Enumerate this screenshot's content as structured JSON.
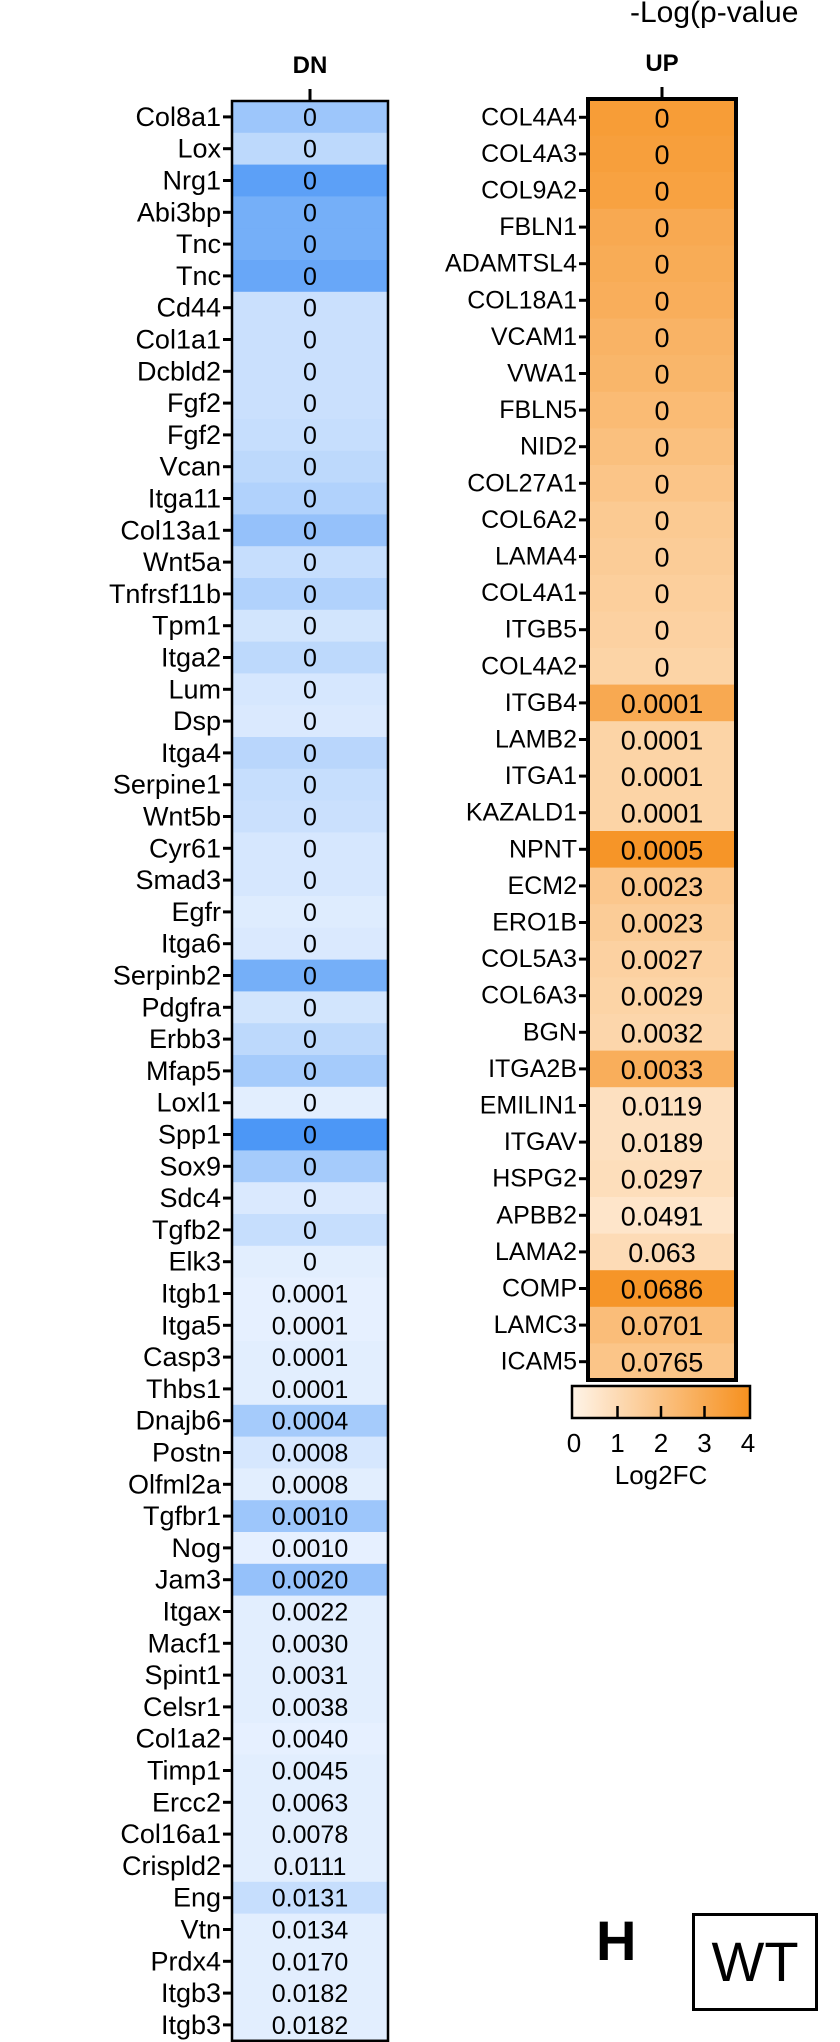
{
  "figure": {
    "top_title": "-Log(p-value",
    "panel_letter": "H",
    "wt_label": "WT"
  },
  "chart_data": [
    {
      "type": "heatmap",
      "title": "DN",
      "color_scale": "blue",
      "genes": [
        "Col8a1",
        "Lox",
        "Nrg1",
        "Abi3bp",
        "Tnc",
        "Tnc",
        "Cd44",
        "Col1a1",
        "Dcbld2",
        "Fgf2",
        "Fgf2",
        "Vcan",
        "Itga11",
        "Col13a1",
        "Wnt5a",
        "Tnfrsf11b",
        "Tpm1",
        "Itga2",
        "Lum",
        "Dsp",
        "Itga4",
        "Serpine1",
        "Wnt5b",
        "Cyr61",
        "Smad3",
        "Egfr",
        "Itga6",
        "Serpinb2",
        "Pdgfra",
        "Erbb3",
        "Mfap5",
        "Loxl1",
        "Spp1",
        "Sox9",
        "Sdc4",
        "Tgfb2",
        "Elk3",
        "Itgb1",
        "Itga5",
        "Casp3",
        "Thbs1",
        "Dnajb6",
        "Postn",
        "Olfml2a",
        "Tgfbr1",
        "Nog",
        "Jam3",
        "Itgax",
        "Macf1",
        "Spint1",
        "Celsr1",
        "Col1a2",
        "Timp1",
        "Ercc2",
        "Col16a1",
        "Crispld2",
        "Eng",
        "Vtn",
        "Prdx4",
        "Itgb3",
        "Itgb3"
      ],
      "p_values": [
        "0",
        "0",
        "0",
        "0",
        "0",
        "0",
        "0",
        "0",
        "0",
        "0",
        "0",
        "0",
        "0",
        "0",
        "0",
        "0",
        "0",
        "0",
        "0",
        "0",
        "0",
        "0",
        "0",
        "0",
        "0",
        "0",
        "0",
        "0",
        "0",
        "0",
        "0",
        "0",
        "0",
        "0",
        "0",
        "0",
        "0",
        "0.0001",
        "0.0001",
        "0.0001",
        "0.0001",
        "0.0004",
        "0.0008",
        "0.0008",
        "0.0010",
        "0.0010",
        "0.0020",
        "0.0022",
        "0.0030",
        "0.0031",
        "0.0038",
        "0.0040",
        "0.0045",
        "0.0063",
        "0.0078",
        "0.0111",
        "0.0131",
        "0.0134",
        "0.0170",
        "0.0182",
        "0.0182"
      ],
      "log2fc_magnitude": [
        2.0,
        1.2,
        3.6,
        3.0,
        3.0,
        3.3,
        0.9,
        0.9,
        0.9,
        0.9,
        1.0,
        1.2,
        1.5,
        2.2,
        1.0,
        1.5,
        0.7,
        1.2,
        0.6,
        0.5,
        1.3,
        1.0,
        0.9,
        0.6,
        0.6,
        0.4,
        0.5,
        3.0,
        0.7,
        1.2,
        1.8,
        0.3,
        4.0,
        1.8,
        0.5,
        1.0,
        0.3,
        0.2,
        0.2,
        0.3,
        0.3,
        1.8,
        0.6,
        0.3,
        2.0,
        0.2,
        2.2,
        0.3,
        0.3,
        0.3,
        0.3,
        0.2,
        0.3,
        0.3,
        0.3,
        0.3,
        1.0,
        0.3,
        0.3,
        0.3,
        0.3
      ]
    },
    {
      "type": "heatmap",
      "title": "UP",
      "color_scale": "orange",
      "genes": [
        "COL4A4",
        "COL4A3",
        "COL9A2",
        "FBLN1",
        "ADAMTSL4",
        "COL18A1",
        "VCAM1",
        "VWA1",
        "FBLN5",
        "NID2",
        "COL27A1",
        "COL6A2",
        "LAMA4",
        "COL4A1",
        "ITGB5",
        "COL4A2",
        "ITGB4",
        "LAMB2",
        "ITGA1",
        "KAZALD1",
        "NPNT",
        "ECM2",
        "ERO1B",
        "COL5A3",
        "COL6A3",
        "BGN",
        "ITGA2B",
        "EMILIN1",
        "ITGAV",
        "HSPG2",
        "APBB2",
        "LAMA2",
        "COMP",
        "LAMC3",
        "ICAM5"
      ],
      "p_values": [
        "0",
        "0",
        "0",
        "0",
        "0",
        "0",
        "0",
        "0",
        "0",
        "0",
        "0",
        "0",
        "0",
        "0",
        "0",
        "0",
        "0.0001",
        "0.0001",
        "0.0001",
        "0.0001",
        "0.0005",
        "0.0023",
        "0.0023",
        "0.0027",
        "0.0029",
        "0.0032",
        "0.0033",
        "0.0119",
        "0.0189",
        "0.0297",
        "0.0491",
        "0.063",
        "0.0686",
        "0.0701",
        "0.0765"
      ],
      "log2fc": [
        3.5,
        3.4,
        3.3,
        3.0,
        2.9,
        2.8,
        2.6,
        2.5,
        2.3,
        2.1,
        1.9,
        1.7,
        1.6,
        1.5,
        1.4,
        1.3,
        3.0,
        1.3,
        1.3,
        1.3,
        3.8,
        1.8,
        1.6,
        1.4,
        1.3,
        1.2,
        2.8,
        0.8,
        0.8,
        0.9,
        0.6,
        1.0,
        3.8,
        2.2,
        1.9
      ],
      "legend": {
        "label": "Log2FC",
        "ticks": [
          "0",
          "1",
          "2",
          "3",
          "4"
        ]
      }
    }
  ],
  "colors": {
    "blue_low": "#eef5ff",
    "blue_high": "#4c97f6",
    "orange_low": "#fff4e8",
    "orange_high": "#f6901e",
    "border": "#000000"
  }
}
